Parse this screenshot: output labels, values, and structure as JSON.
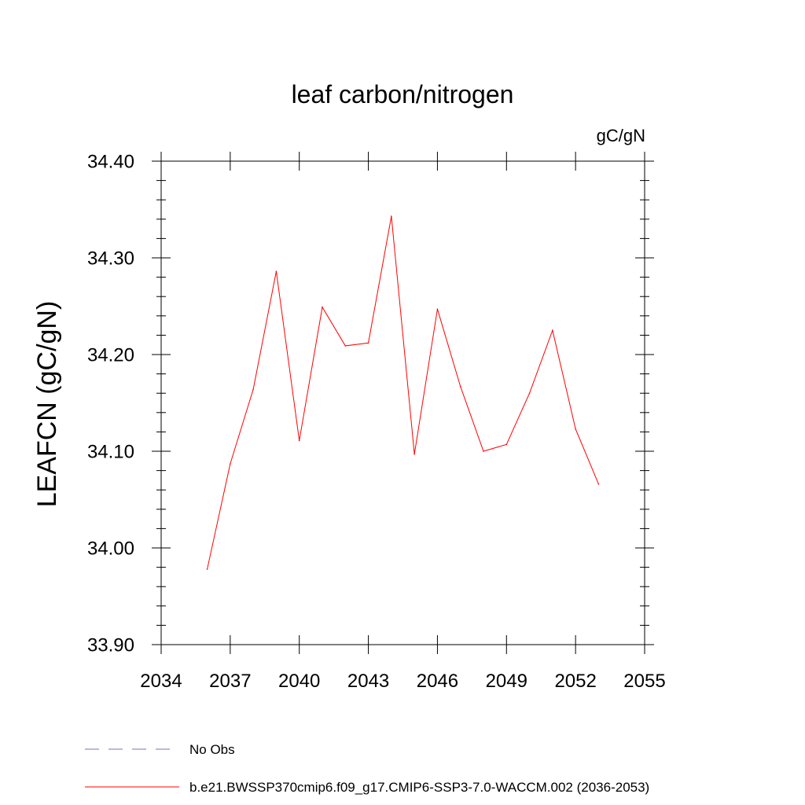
{
  "chart_data": {
    "type": "line",
    "title": "leaf carbon/nitrogen",
    "units": "gC/gN",
    "ylabel": "LEAFCN  (gC/gN)",
    "xlabel": "",
    "xlim": [
      2034,
      2055
    ],
    "ylim": [
      33.9,
      34.4
    ],
    "x_ticks": [
      2034,
      2037,
      2040,
      2043,
      2046,
      2049,
      2052,
      2055
    ],
    "x_tick_labels": [
      "2034",
      "2037",
      "2040",
      "2043",
      "2046",
      "2049",
      "2052",
      "2055"
    ],
    "y_ticks": [
      33.9,
      34.0,
      34.1,
      34.2,
      34.3,
      34.4
    ],
    "y_tick_labels": [
      "33.90",
      "34.00",
      "34.10",
      "34.20",
      "34.30",
      "34.40"
    ],
    "grid": false,
    "series": [
      {
        "name": "b.e21.BWSSP370cmip6.f09_g17.CMIP6-SSP3-7.0-WACCM.002 (2036-2053)",
        "color": "#ff0000",
        "style": "solid",
        "x": [
          2036,
          2037,
          2038,
          2039,
          2040,
          2041,
          2042,
          2043,
          2044,
          2045,
          2046,
          2047,
          2048,
          2049,
          2050,
          2051,
          2052,
          2053
        ],
        "values": [
          33.978,
          34.087,
          34.164,
          34.286,
          34.111,
          34.249,
          34.209,
          34.212,
          34.343,
          34.097,
          34.247,
          34.167,
          34.1,
          34.107,
          34.16,
          34.225,
          34.123,
          34.066
        ]
      }
    ],
    "legend": [
      {
        "label": "No Obs",
        "color": "#7a6fc0",
        "style": "dashed"
      },
      {
        "label": "b.e21.BWSSP370cmip6.f09_g17.CMIP6-SSP3-7.0-WACCM.002 (2036-2053)",
        "color": "#ff0000",
        "style": "solid"
      }
    ],
    "legend_position": "bottom-left"
  }
}
